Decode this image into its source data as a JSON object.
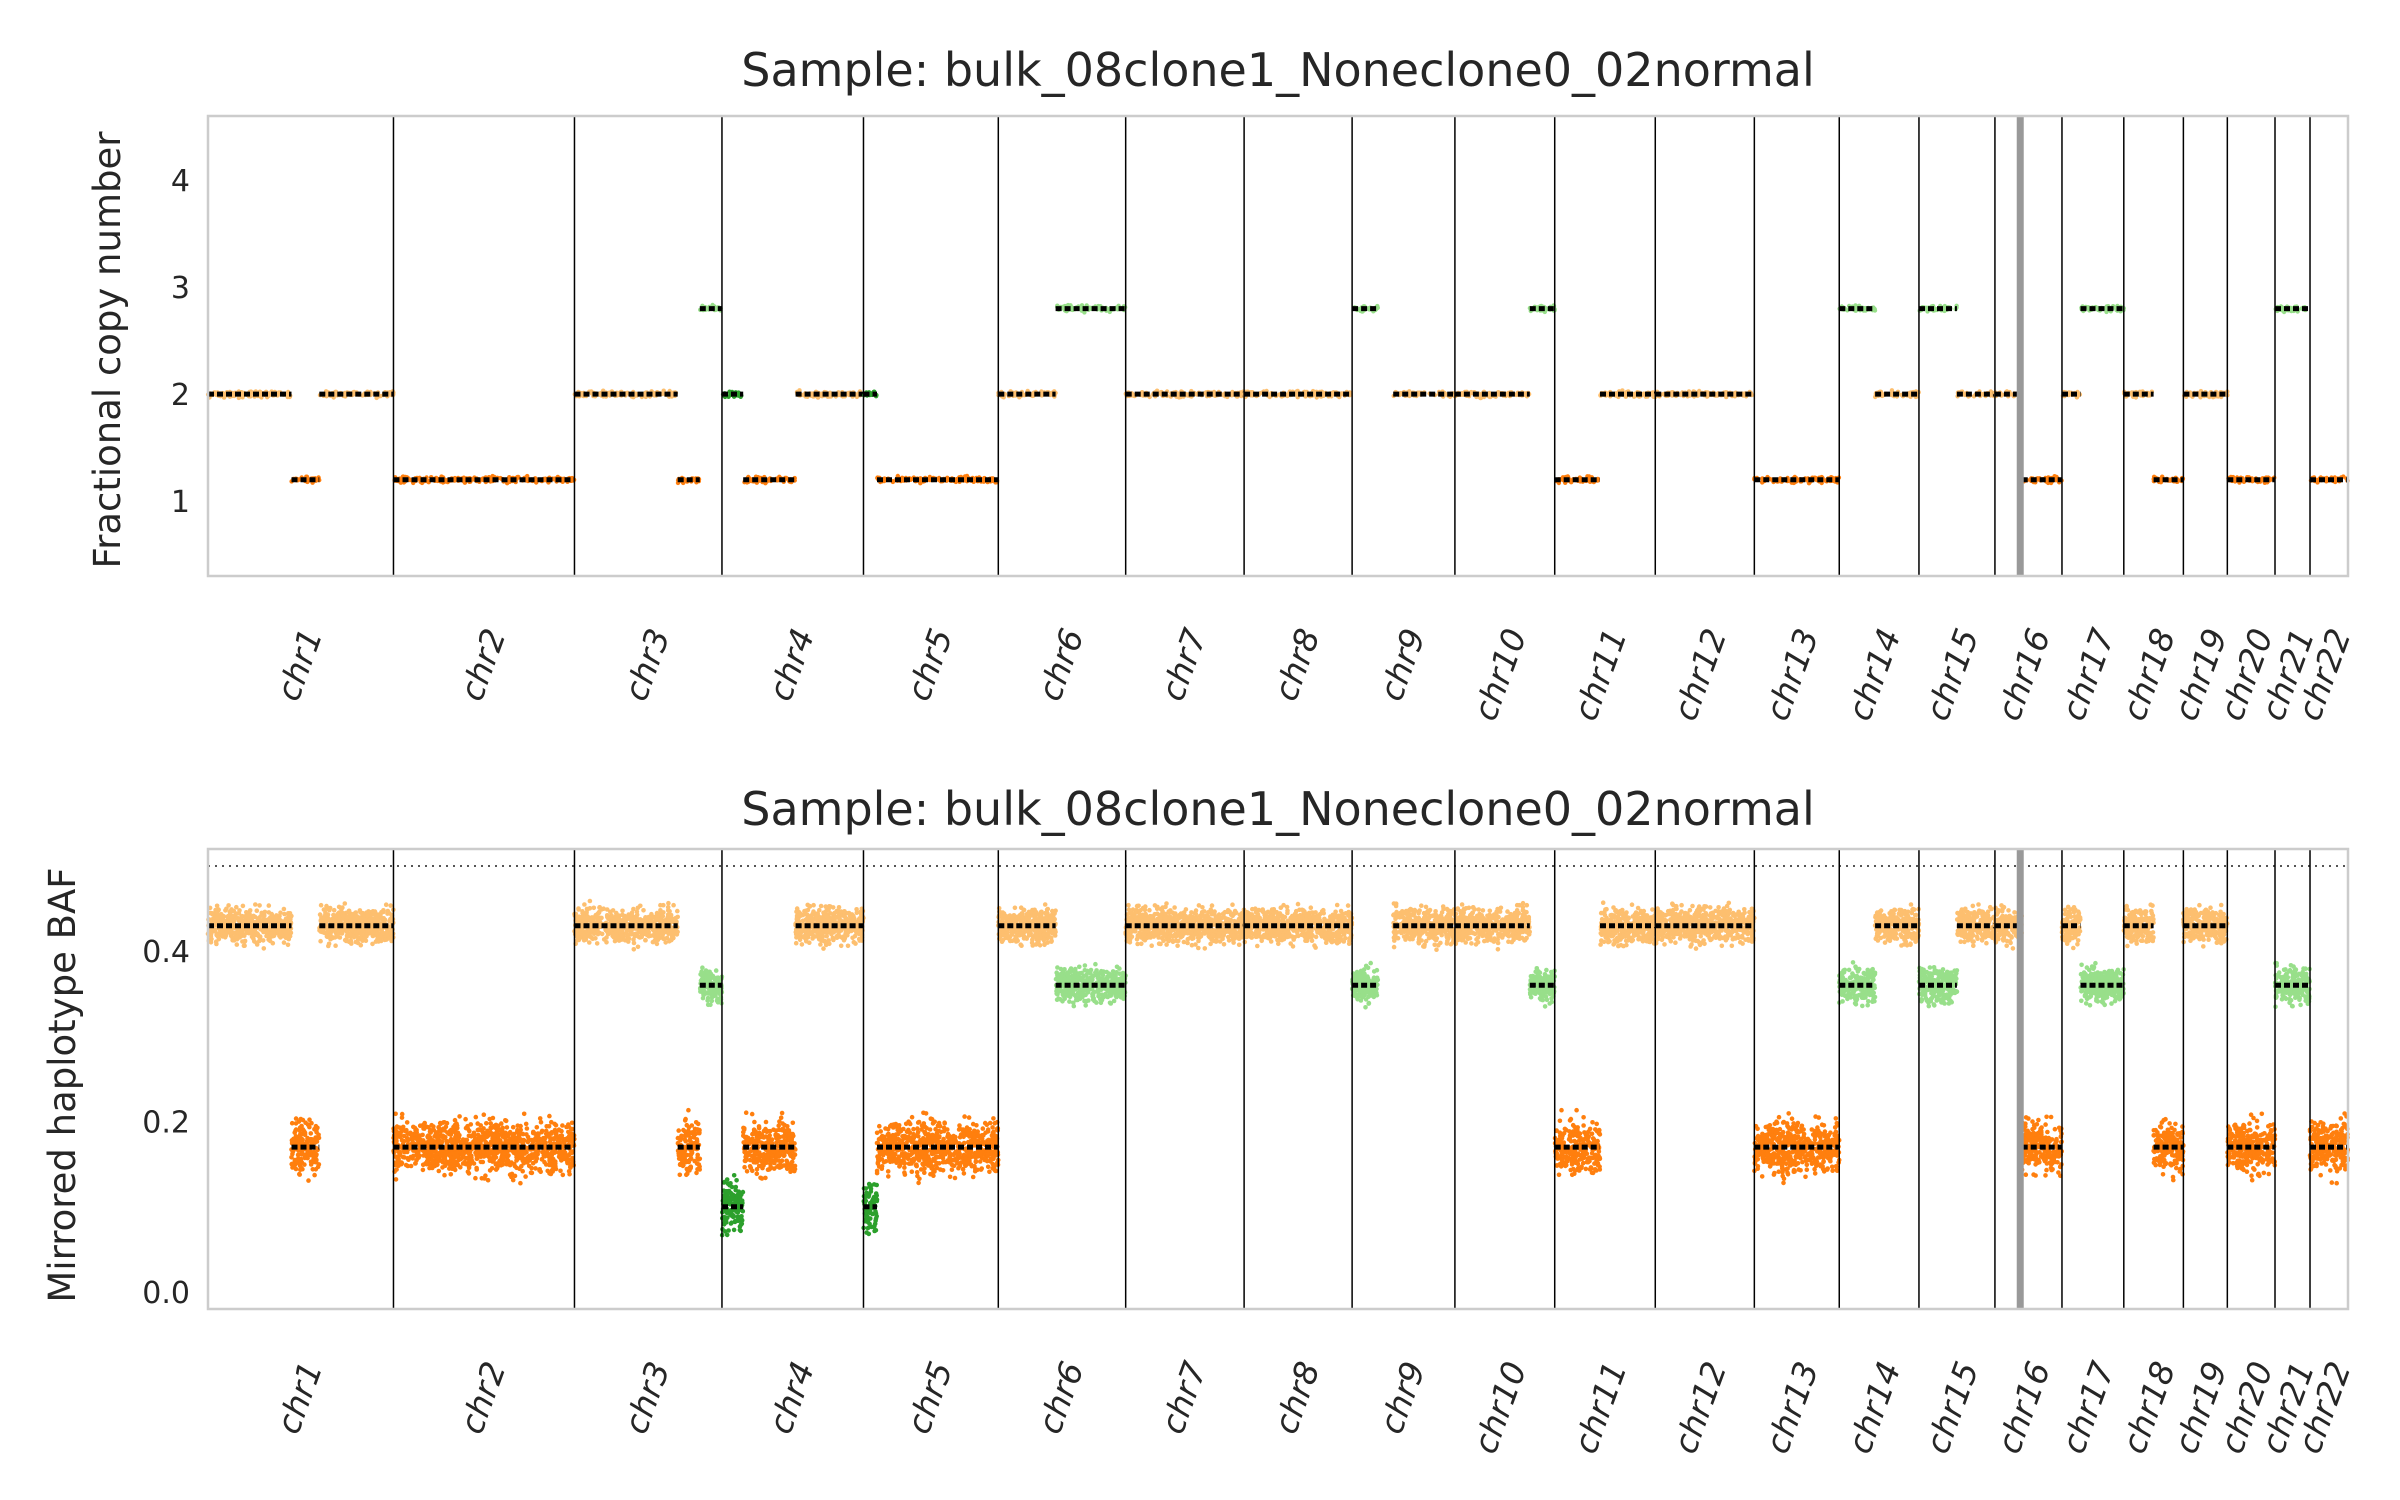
{
  "chart_data": [
    {
      "type": "scatter",
      "title": "Sample: bulk_08clone1_Noneclone0_02normal",
      "xlabel": "",
      "ylabel": "Fractional copy number",
      "yticks": [
        "1",
        "2",
        "3",
        "4"
      ],
      "ylim": [
        0.3,
        4.6
      ],
      "grid": false,
      "chromosomes": [
        "chr1",
        "chr2",
        "chr3",
        "chr4",
        "chr5",
        "chr6",
        "chr7",
        "chr8",
        "chr9",
        "chr10",
        "chr11",
        "chr12",
        "chr13",
        "chr14",
        "chr15",
        "chr16",
        "chr17",
        "chr18",
        "chr19",
        "chr20",
        "chr21",
        "chr22"
      ],
      "chromosome_lengths_mb": [
        249,
        243,
        198,
        190,
        181,
        171,
        159,
        145,
        138,
        134,
        135,
        133,
        114,
        107,
        102,
        90,
        83,
        80,
        59,
        64,
        47,
        51
      ],
      "segments": [
        {
          "chr": "chr1",
          "start": 0,
          "end": 0.45,
          "cn": 2.0,
          "color": "#fdbf6f"
        },
        {
          "chr": "chr1",
          "start": 0.45,
          "end": 0.6,
          "cn": 1.2,
          "color": "#ff7f0e"
        },
        {
          "chr": "chr1",
          "start": 0.6,
          "end": 1.0,
          "cn": 2.0,
          "color": "#fdbf6f"
        },
        {
          "chr": "chr2",
          "start": 0,
          "end": 1.0,
          "cn": 1.2,
          "color": "#ff7f0e"
        },
        {
          "chr": "chr3",
          "start": 0,
          "end": 0.7,
          "cn": 2.0,
          "color": "#fdbf6f"
        },
        {
          "chr": "chr3",
          "start": 0.7,
          "end": 0.85,
          "cn": 1.2,
          "color": "#ff7f0e"
        },
        {
          "chr": "chr3",
          "start": 0.85,
          "end": 1.0,
          "cn": 2.8,
          "color": "#98df8a"
        },
        {
          "chr": "chr4",
          "start": 0,
          "end": 0.15,
          "cn": 2.0,
          "color": "#2ca02c"
        },
        {
          "chr": "chr4",
          "start": 0.15,
          "end": 0.52,
          "cn": 1.2,
          "color": "#ff7f0e"
        },
        {
          "chr": "chr4",
          "start": 0.52,
          "end": 1.0,
          "cn": 2.0,
          "color": "#fdbf6f"
        },
        {
          "chr": "chr5",
          "start": 0,
          "end": 0.1,
          "cn": 2.0,
          "color": "#2ca02c"
        },
        {
          "chr": "chr5",
          "start": 0.1,
          "end": 1.0,
          "cn": 1.2,
          "color": "#ff7f0e"
        },
        {
          "chr": "chr6",
          "start": 0,
          "end": 0.45,
          "cn": 2.0,
          "color": "#fdbf6f"
        },
        {
          "chr": "chr6",
          "start": 0.45,
          "end": 1.0,
          "cn": 2.8,
          "color": "#98df8a"
        },
        {
          "chr": "chr7",
          "start": 0,
          "end": 1.0,
          "cn": 2.0,
          "color": "#fdbf6f"
        },
        {
          "chr": "chr8",
          "start": 0,
          "end": 1.0,
          "cn": 2.0,
          "color": "#fdbf6f"
        },
        {
          "chr": "chr9",
          "start": 0,
          "end": 0.25,
          "cn": 2.8,
          "color": "#98df8a"
        },
        {
          "chr": "chr9",
          "start": 0.4,
          "end": 1.0,
          "cn": 2.0,
          "color": "#fdbf6f"
        },
        {
          "chr": "chr10",
          "start": 0,
          "end": 0.75,
          "cn": 2.0,
          "color": "#fdbf6f"
        },
        {
          "chr": "chr10",
          "start": 0.75,
          "end": 1.0,
          "cn": 2.8,
          "color": "#98df8a"
        },
        {
          "chr": "chr11",
          "start": 0,
          "end": 0.45,
          "cn": 1.2,
          "color": "#ff7f0e"
        },
        {
          "chr": "chr11",
          "start": 0.45,
          "end": 1.0,
          "cn": 2.0,
          "color": "#fdbf6f"
        },
        {
          "chr": "chr12",
          "start": 0,
          "end": 1.0,
          "cn": 2.0,
          "color": "#fdbf6f"
        },
        {
          "chr": "chr13",
          "start": 0,
          "end": 1.0,
          "cn": 1.2,
          "color": "#ff7f0e"
        },
        {
          "chr": "chr14",
          "start": 0,
          "end": 0.45,
          "cn": 2.8,
          "color": "#98df8a"
        },
        {
          "chr": "chr14",
          "start": 0.45,
          "end": 1.0,
          "cn": 2.0,
          "color": "#fdbf6f"
        },
        {
          "chr": "chr15",
          "start": 0,
          "end": 0.5,
          "cn": 2.8,
          "color": "#98df8a"
        },
        {
          "chr": "chr15",
          "start": 0.5,
          "end": 1.0,
          "cn": 2.0,
          "color": "#fdbf6f"
        },
        {
          "chr": "chr16",
          "start": 0,
          "end": 0.4,
          "cn": 2.0,
          "color": "#fdbf6f"
        },
        {
          "chr": "chr16",
          "start": 0.4,
          "end": 1.0,
          "cn": 1.2,
          "color": "#ff7f0e"
        },
        {
          "chr": "chr17",
          "start": 0,
          "end": 0.3,
          "cn": 2.0,
          "color": "#fdbf6f"
        },
        {
          "chr": "chr17",
          "start": 0.3,
          "end": 1.0,
          "cn": 2.8,
          "color": "#98df8a"
        },
        {
          "chr": "chr18",
          "start": 0,
          "end": 0.5,
          "cn": 2.0,
          "color": "#fdbf6f"
        },
        {
          "chr": "chr18",
          "start": 0.5,
          "end": 1.0,
          "cn": 1.2,
          "color": "#ff7f0e"
        },
        {
          "chr": "chr19",
          "start": 0,
          "end": 1.0,
          "cn": 2.0,
          "color": "#fdbf6f"
        },
        {
          "chr": "chr20",
          "start": 0,
          "end": 1.0,
          "cn": 1.2,
          "color": "#ff7f0e"
        },
        {
          "chr": "chr21",
          "start": 0,
          "end": 1.0,
          "cn": 2.8,
          "color": "#98df8a"
        },
        {
          "chr": "chr22",
          "start": 0,
          "end": 1.0,
          "cn": 1.2,
          "color": "#ff7f0e"
        }
      ]
    },
    {
      "type": "scatter",
      "title": "Sample: bulk_08clone1_Noneclone0_02normal",
      "xlabel": "",
      "ylabel": "Mirrored haplotype BAF",
      "yticks": [
        "0.0",
        "0.2",
        "0.4"
      ],
      "ylim": [
        -0.02,
        0.52
      ],
      "reference_line": 0.5,
      "grid": false,
      "chromosomes": [
        "chr1",
        "chr2",
        "chr3",
        "chr4",
        "chr5",
        "chr6",
        "chr7",
        "chr8",
        "chr9",
        "chr10",
        "chr11",
        "chr12",
        "chr13",
        "chr14",
        "chr15",
        "chr16",
        "chr17",
        "chr18",
        "chr19",
        "chr20",
        "chr21",
        "chr22"
      ],
      "segments": [
        {
          "chr": "chr1",
          "start": 0,
          "end": 0.45,
          "baf": 0.43,
          "color": "#fdbf6f"
        },
        {
          "chr": "chr1",
          "start": 0.45,
          "end": 0.6,
          "baf": 0.17,
          "color": "#ff7f0e"
        },
        {
          "chr": "chr1",
          "start": 0.6,
          "end": 1.0,
          "baf": 0.43,
          "color": "#fdbf6f"
        },
        {
          "chr": "chr2",
          "start": 0,
          "end": 1.0,
          "baf": 0.17,
          "color": "#ff7f0e"
        },
        {
          "chr": "chr3",
          "start": 0,
          "end": 0.7,
          "baf": 0.43,
          "color": "#fdbf6f"
        },
        {
          "chr": "chr3",
          "start": 0.7,
          "end": 0.85,
          "baf": 0.17,
          "color": "#ff7f0e"
        },
        {
          "chr": "chr3",
          "start": 0.85,
          "end": 1.0,
          "baf": 0.36,
          "color": "#98df8a"
        },
        {
          "chr": "chr4",
          "start": 0,
          "end": 0.15,
          "baf": 0.1,
          "color": "#2ca02c"
        },
        {
          "chr": "chr4",
          "start": 0.15,
          "end": 0.52,
          "baf": 0.17,
          "color": "#ff7f0e"
        },
        {
          "chr": "chr4",
          "start": 0.52,
          "end": 1.0,
          "baf": 0.43,
          "color": "#fdbf6f"
        },
        {
          "chr": "chr5",
          "start": 0,
          "end": 0.1,
          "baf": 0.1,
          "color": "#2ca02c"
        },
        {
          "chr": "chr5",
          "start": 0.1,
          "end": 1.0,
          "baf": 0.17,
          "color": "#ff7f0e"
        },
        {
          "chr": "chr6",
          "start": 0,
          "end": 0.45,
          "baf": 0.43,
          "color": "#fdbf6f"
        },
        {
          "chr": "chr6",
          "start": 0.45,
          "end": 1.0,
          "baf": 0.36,
          "color": "#98df8a"
        },
        {
          "chr": "chr7",
          "start": 0,
          "end": 1.0,
          "baf": 0.43,
          "color": "#fdbf6f"
        },
        {
          "chr": "chr8",
          "start": 0,
          "end": 1.0,
          "baf": 0.43,
          "color": "#fdbf6f"
        },
        {
          "chr": "chr9",
          "start": 0,
          "end": 0.25,
          "baf": 0.36,
          "color": "#98df8a"
        },
        {
          "chr": "chr9",
          "start": 0.4,
          "end": 1.0,
          "baf": 0.43,
          "color": "#fdbf6f"
        },
        {
          "chr": "chr10",
          "start": 0,
          "end": 0.75,
          "baf": 0.43,
          "color": "#fdbf6f"
        },
        {
          "chr": "chr10",
          "start": 0.75,
          "end": 1.0,
          "baf": 0.36,
          "color": "#98df8a"
        },
        {
          "chr": "chr11",
          "start": 0,
          "end": 0.45,
          "baf": 0.17,
          "color": "#ff7f0e"
        },
        {
          "chr": "chr11",
          "start": 0.45,
          "end": 1.0,
          "baf": 0.43,
          "color": "#fdbf6f"
        },
        {
          "chr": "chr12",
          "start": 0,
          "end": 1.0,
          "baf": 0.43,
          "color": "#fdbf6f"
        },
        {
          "chr": "chr13",
          "start": 0,
          "end": 1.0,
          "baf": 0.17,
          "color": "#ff7f0e"
        },
        {
          "chr": "chr14",
          "start": 0,
          "end": 0.45,
          "baf": 0.36,
          "color": "#98df8a"
        },
        {
          "chr": "chr14",
          "start": 0.45,
          "end": 1.0,
          "baf": 0.43,
          "color": "#fdbf6f"
        },
        {
          "chr": "chr15",
          "start": 0,
          "end": 0.5,
          "baf": 0.36,
          "color": "#98df8a"
        },
        {
          "chr": "chr15",
          "start": 0.5,
          "end": 1.0,
          "baf": 0.43,
          "color": "#fdbf6f"
        },
        {
          "chr": "chr16",
          "start": 0,
          "end": 0.4,
          "baf": 0.43,
          "color": "#fdbf6f"
        },
        {
          "chr": "chr16",
          "start": 0.4,
          "end": 1.0,
          "baf": 0.17,
          "color": "#ff7f0e"
        },
        {
          "chr": "chr17",
          "start": 0,
          "end": 0.3,
          "baf": 0.43,
          "color": "#fdbf6f"
        },
        {
          "chr": "chr17",
          "start": 0.3,
          "end": 1.0,
          "baf": 0.36,
          "color": "#98df8a"
        },
        {
          "chr": "chr18",
          "start": 0,
          "end": 0.5,
          "baf": 0.43,
          "color": "#fdbf6f"
        },
        {
          "chr": "chr18",
          "start": 0.5,
          "end": 1.0,
          "baf": 0.17,
          "color": "#ff7f0e"
        },
        {
          "chr": "chr19",
          "start": 0,
          "end": 1.0,
          "baf": 0.43,
          "color": "#fdbf6f"
        },
        {
          "chr": "chr20",
          "start": 0,
          "end": 1.0,
          "baf": 0.17,
          "color": "#ff7f0e"
        },
        {
          "chr": "chr21",
          "start": 0,
          "end": 1.0,
          "baf": 0.36,
          "color": "#98df8a"
        },
        {
          "chr": "chr22",
          "start": 0,
          "end": 1.0,
          "baf": 0.17,
          "color": "#ff7f0e"
        }
      ]
    }
  ],
  "colors": {
    "clone_a": "#fdbf6f",
    "clone_b": "#ff7f0e",
    "clone_c": "#98df8a",
    "clone_d": "#2ca02c",
    "clone_e": "#aec7e8",
    "clone_f": "#9467bd",
    "clone_g": "#d62728",
    "clone_h": "#ff9896",
    "segment_marker": "#000000",
    "axes_frame": "#cccccc",
    "centromere_band": "#999999"
  }
}
